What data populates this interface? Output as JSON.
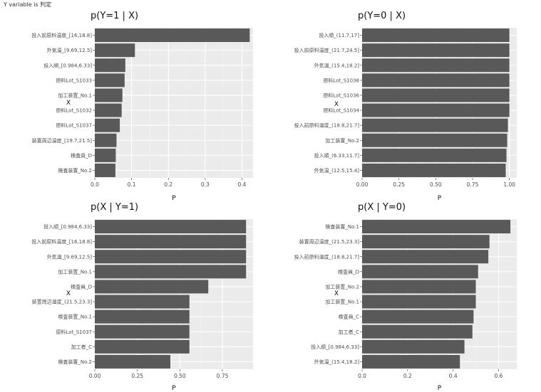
{
  "caption": "Y variable is 判定",
  "chart_data": [
    {
      "type": "bar",
      "orientation": "horizontal",
      "title": "p(Y=1 | X)",
      "xlabel": "P",
      "ylabel": "X",
      "xlim": [
        0,
        0.43
      ],
      "xticks": [
        0,
        0.1,
        0.2,
        0.3,
        0.4
      ],
      "xtick_labels": [
        "0.0",
        "0.1",
        "0.2",
        "0.3",
        "0.4"
      ],
      "categories": [
        "投入前原料温度_[16,18.8]",
        "外気温_[9.69,12.5]",
        "投入順_[0.984,6.33]",
        "原料Lot_S1033",
        "加工装置_No.1",
        "原料Lot_S1032",
        "原料Lot_S1037",
        "装置周辺温度_[19.7,21.5]",
        "検査員_D",
        "検査装置_No.2"
      ],
      "values": [
        0.421,
        0.109,
        0.083,
        0.081,
        0.075,
        0.073,
        0.068,
        0.059,
        0.057,
        0.056
      ],
      "bar_color": "#595959"
    },
    {
      "type": "bar",
      "orientation": "horizontal",
      "title": "p(Y=0 | X)",
      "xlabel": "P",
      "ylabel": "X",
      "xlim": [
        0,
        1.05
      ],
      "xticks": [
        0,
        0.25,
        0.5,
        0.75,
        1.0
      ],
      "xtick_labels": [
        "0.00",
        "0.25",
        "0.50",
        "0.75",
        "1.00"
      ],
      "categories": [
        "投入順_(11.7,17]",
        "投入前原料温度_(21.7,24.5]",
        "外気温_(15.4,18.2]",
        "原料Lot_S1038",
        "原料Lot_S1036",
        "原料Lot_S1034",
        "投入前原料温度_(18.8,21.7]",
        "加工装置_No.2",
        "投入順_(6.33,11.7]",
        "外気温_(12.5,15.4]"
      ],
      "values": [
        1.0,
        1.0,
        1.0,
        1.0,
        1.0,
        1.0,
        0.99,
        0.985,
        0.98,
        0.975
      ],
      "bar_color": "#595959"
    },
    {
      "type": "bar",
      "orientation": "horizontal",
      "title": "p(X | Y=1)",
      "xlabel": "P",
      "ylabel": "X",
      "xlim": [
        0,
        0.93
      ],
      "xticks": [
        0,
        0.25,
        0.5,
        0.75
      ],
      "xtick_labels": [
        "0.00",
        "0.25",
        "0.50",
        "0.75"
      ],
      "categories": [
        "投入順_[0.984,6.33]",
        "投入前原料温度_[16,18.8]",
        "外気温_[9.69,12.5]",
        "加工装置_No.1",
        "検査員_D",
        "装置周辺温度_(21.5,23.3]",
        "検査装置_No.1",
        "原料Lot_S1037",
        "加工者_C",
        "検査装置_No.2"
      ],
      "values": [
        0.889,
        0.889,
        0.889,
        0.889,
        0.667,
        0.556,
        0.556,
        0.556,
        0.556,
        0.444
      ],
      "bar_color": "#595959"
    },
    {
      "type": "bar",
      "orientation": "horizontal",
      "title": "p(X | Y=0)",
      "xlabel": "P",
      "ylabel": "X",
      "xlim": [
        0,
        0.68
      ],
      "xticks": [
        0,
        0.2,
        0.4,
        0.6
      ],
      "xtick_labels": [
        "0.0",
        "0.2",
        "0.4",
        "0.6"
      ],
      "categories": [
        "検査装置_No.1",
        "装置周辺温度_(21.5,23.3]",
        "投入前原料温度_(18.8,21.7]",
        "検査員_D",
        "加工装置_No.2",
        "加工装置_No.1",
        "検査員_C",
        "加工者_C",
        "投入順_[0.984,6.33]",
        "外気温_(15.4,18.2]"
      ],
      "values": [
        0.652,
        0.56,
        0.555,
        0.51,
        0.5,
        0.5,
        0.49,
        0.485,
        0.45,
        0.43
      ],
      "bar_color": "#595959"
    }
  ]
}
